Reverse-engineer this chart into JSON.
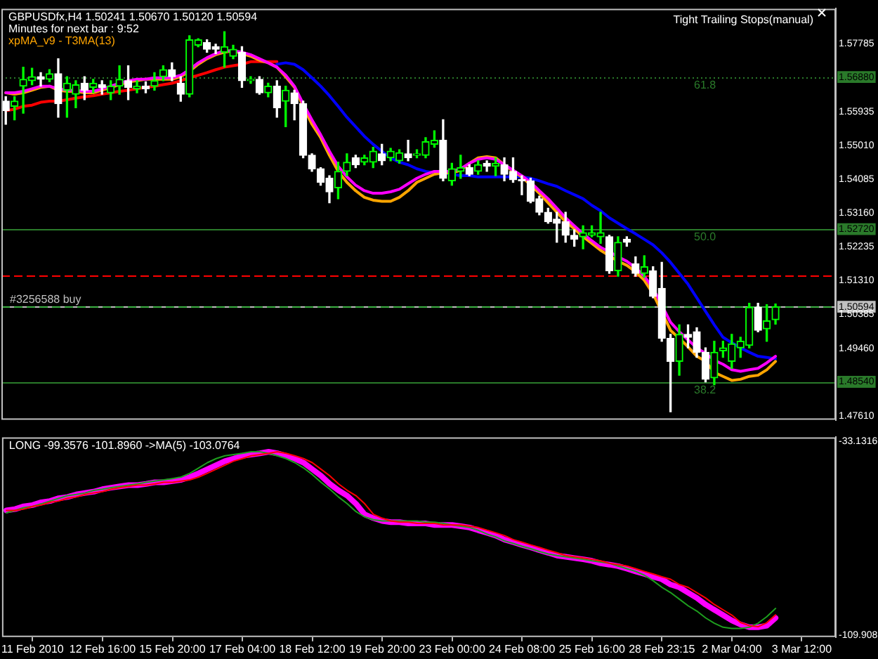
{
  "chart_data": [
    {
      "type": "candlestick",
      "title": "GBPUSDfx,H4 1.50241 1.50670 1.50120 1.50594",
      "annotations": [
        "Minutes for next bar : 9:52",
        "Tight Trailing Stops(manual)",
        {
          "text": "61.8",
          "y": 1.5688
        },
        {
          "text": "50.0",
          "y": 1.5272
        },
        {
          "text": "38.2",
          "y": 1.4854
        }
      ],
      "categories": [
        null,
        null,
        null,
        null,
        null,
        null,
        null,
        null,
        null,
        null,
        null,
        null,
        null,
        null,
        null,
        null,
        null,
        null,
        null,
        null,
        null,
        null,
        null,
        null,
        null,
        null,
        null,
        null,
        null,
        null,
        null,
        null,
        null,
        null,
        null,
        null,
        null,
        null,
        null,
        null,
        null,
        null,
        null,
        null,
        null,
        null,
        null,
        null,
        null,
        null,
        null,
        null,
        null,
        null,
        null,
        null,
        null,
        null,
        null,
        null,
        null,
        null,
        null,
        null,
        null,
        null,
        null,
        null,
        null,
        null,
        null,
        null,
        null,
        null,
        null,
        null,
        null,
        null,
        null,
        null,
        null,
        null,
        null,
        null,
        null,
        null,
        null,
        null,
        null,
        null,
        null,
        null
      ],
      "colors": [
        "#ffffff",
        "#00ff00",
        "#00ff00",
        "#00ff00",
        "#ffffff",
        "#00ff00",
        "#ffffff",
        "#00ff00",
        "#00ff00",
        "#ffffff",
        "#00ff00",
        "#ffffff",
        "#00ff00",
        "#00ff00",
        "#ffffff",
        "#00ff00",
        "#ffffff",
        "#00ff00",
        "#00ff00",
        "#ffffff",
        "#ffffff",
        "#00ff00",
        "#00ff00",
        "#ffffff",
        "#ffffff",
        "#00ff00",
        "#00ff00",
        "#ffffff",
        "#00ff00",
        "#ffffff",
        "#00ff00",
        "#ffffff",
        "#00ff00",
        "#ffffff",
        "#ffffff",
        "#ffffff",
        "#ffffff",
        "#ffffff",
        "#00ff00",
        "#00ff00",
        "#ffffff",
        "#00ff00",
        "#00ff00",
        "#ffffff",
        "#00ff00",
        "#00ff00",
        "#ffffff",
        "#00ff00",
        "#00ff00",
        "#00ff00",
        "#ffffff",
        "#00ff00",
        "#00ff00",
        "#ffffff",
        "#00ff00",
        "#ffffff",
        "#00ff00",
        "#ffffff",
        "#ffffff",
        "#ffffff",
        "#ffffff",
        "#ffffff",
        "#ffffff",
        "#ffffff",
        "#ffffff",
        "#ffffff",
        "#00ff00",
        "#00ff00",
        "#00ff00",
        "#ffffff",
        "#00ff00",
        "#ffffff",
        "#ffffff",
        "#00ff00",
        "#ffffff",
        "#ffffff",
        "#ffffff",
        "#00ff00",
        "#ffffff",
        "#ffffff",
        "#ffffff",
        "#00ff00",
        "#00ff00",
        "#00ff00",
        "#00ff00",
        "#00ff00",
        "#ffffff",
        "#00ff00",
        "#00ff00",
        null,
        null,
        null
      ],
      "ohlc": [
        [
          1.5622,
          1.5634,
          1.5559,
          1.5596
        ],
        [
          1.5608,
          1.5634,
          1.5571,
          1.5622
        ],
        [
          1.5663,
          1.5715,
          1.5589,
          1.5682
        ],
        [
          1.5678,
          1.5712,
          1.5667,
          1.5689
        ],
        [
          1.5689,
          1.57,
          1.5663,
          1.5682
        ],
        [
          1.5682,
          1.5708,
          1.5675,
          1.5697
        ],
        [
          1.5697,
          1.5738,
          1.5578,
          1.5615
        ],
        [
          1.5652,
          1.5689,
          1.5578,
          1.5671
        ],
        [
          1.5641,
          1.5678,
          1.5604,
          1.5667
        ],
        [
          1.5671,
          1.5689,
          1.5626,
          1.5652
        ],
        [
          1.566,
          1.5682,
          1.5645,
          1.5671
        ],
        [
          1.5667,
          1.5678,
          1.5641,
          1.566
        ],
        [
          1.5645,
          1.5678,
          1.5626,
          1.5663
        ],
        [
          1.5663,
          1.5719,
          1.5641,
          1.5682
        ],
        [
          1.5678,
          1.5719,
          1.5626,
          1.566
        ],
        [
          1.5656,
          1.5678,
          1.5645,
          1.5663
        ],
        [
          1.5663,
          1.5675,
          1.5645,
          1.5656
        ],
        [
          1.5663,
          1.57,
          1.5652,
          1.5678
        ],
        [
          1.5689,
          1.5719,
          1.5678,
          1.5708
        ],
        [
          1.5708,
          1.5727,
          1.5678,
          1.5689
        ],
        [
          1.5671,
          1.5689,
          1.5622,
          1.5641
        ],
        [
          1.5641,
          1.5801,
          1.5634,
          1.579
        ],
        [
          1.5775,
          1.5793,
          1.5771,
          1.579
        ],
        [
          1.5782,
          1.579,
          1.5756,
          1.5764
        ],
        [
          1.5771,
          1.5778,
          1.5752,
          1.5764
        ],
        [
          1.5756,
          1.5812,
          1.5715,
          1.5771
        ],
        [
          1.5745,
          1.5775,
          1.5738,
          1.5764
        ],
        [
          1.5756,
          1.5771,
          1.566,
          1.5678
        ],
        [
          1.5678,
          1.5689,
          1.5671,
          1.5682
        ],
        [
          1.5682,
          1.5689,
          1.5641,
          1.5645
        ],
        [
          1.5645,
          1.5671,
          1.5634,
          1.5663
        ],
        [
          1.5663,
          1.5678,
          1.5578,
          1.5604
        ],
        [
          1.5622,
          1.5663,
          1.5552,
          1.5652
        ],
        [
          1.5645,
          1.5652,
          1.5571,
          1.5615
        ],
        [
          1.5615,
          1.5622,
          1.5467,
          1.5474
        ],
        [
          1.5474,
          1.5478,
          1.543,
          1.5437
        ],
        [
          1.5437,
          1.544,
          1.5392,
          1.54
        ],
        [
          1.5411,
          1.5418,
          1.5344,
          1.5374
        ],
        [
          1.5385,
          1.5455,
          1.5355,
          1.543
        ],
        [
          1.543,
          1.5478,
          1.5418,
          1.5455
        ],
        [
          1.5467,
          1.5474,
          1.544,
          1.5448
        ],
        [
          1.5455,
          1.5474,
          1.5448,
          1.5467
        ],
        [
          1.5455,
          1.5496,
          1.544,
          1.5485
        ],
        [
          1.5478,
          1.5504,
          1.5448,
          1.5459
        ],
        [
          1.5467,
          1.5493,
          1.5459,
          1.5485
        ],
        [
          1.5459,
          1.5489,
          1.5452,
          1.5481
        ],
        [
          1.5478,
          1.5515,
          1.5459,
          1.5467
        ],
        [
          1.5474,
          1.5489,
          1.5467,
          1.5478
        ],
        [
          1.5474,
          1.5522,
          1.5467,
          1.5511
        ],
        [
          1.5504,
          1.5541,
          1.5496,
          1.5515
        ],
        [
          1.5515,
          1.5571,
          1.5404,
          1.5411
        ],
        [
          1.5404,
          1.5452,
          1.5392,
          1.5437
        ],
        [
          1.543,
          1.5474,
          1.5411,
          1.544
        ],
        [
          1.544,
          1.5448,
          1.5418,
          1.5422
        ],
        [
          1.543,
          1.5459,
          1.5422,
          1.5448
        ],
        [
          1.5452,
          1.5459,
          1.543,
          1.5444
        ],
        [
          1.5444,
          1.5467,
          1.5418,
          1.5452
        ],
        [
          1.5448,
          1.5467,
          1.5404,
          1.5422
        ],
        [
          1.543,
          1.5467,
          1.54,
          1.5407
        ],
        [
          1.5407,
          1.5418,
          1.5366,
          1.5404
        ],
        [
          1.5404,
          1.5411,
          1.5344,
          1.5348
        ],
        [
          1.5355,
          1.5362,
          1.5311,
          1.5318
        ],
        [
          1.5318,
          1.5329,
          1.5288,
          1.5292
        ],
        [
          1.5299,
          1.5318,
          1.5236,
          1.5288
        ],
        [
          1.5292,
          1.5318,
          1.5236,
          1.5255
        ],
        [
          1.5255,
          1.527,
          1.5225,
          1.5244
        ],
        [
          1.5251,
          1.5281,
          1.5218,
          1.5262
        ],
        [
          1.5255,
          1.5281,
          1.5251,
          1.5262
        ],
        [
          1.5251,
          1.5318,
          1.5233,
          1.5262
        ],
        [
          1.5251,
          1.5255,
          1.5151,
          1.5158
        ],
        [
          1.5158,
          1.5251,
          1.5143,
          1.5236
        ],
        [
          1.5244,
          1.5251,
          1.5225,
          1.5236
        ],
        [
          1.5177,
          1.5196,
          1.5143,
          1.5151
        ],
        [
          1.5151,
          1.5199,
          1.514,
          1.5169
        ],
        [
          1.5158,
          1.5169,
          1.5084,
          1.5088
        ],
        [
          1.511,
          1.5181,
          1.4965,
          1.4973
        ],
        [
          1.4973,
          1.4984,
          1.4772,
          1.491
        ],
        [
          1.491,
          1.501,
          1.4872,
          1.4984
        ],
        [
          1.4984,
          1.501,
          1.4947,
          1.4976
        ],
        [
          1.4991,
          1.5002,
          1.4921,
          1.4935
        ],
        [
          1.4935,
          1.4947,
          1.4854,
          1.4861
        ],
        [
          1.4865,
          1.4965,
          1.4846,
          1.4935
        ],
        [
          1.4939,
          1.4965,
          1.4921,
          1.4947
        ],
        [
          1.491,
          1.4984,
          1.4891,
          1.4958
        ],
        [
          1.4947,
          1.4976,
          1.4921,
          1.4965
        ],
        [
          1.4954,
          1.5069,
          1.4947,
          1.5058
        ],
        [
          1.5058,
          1.5069,
          1.4991,
          1.4995
        ],
        [
          1.4999,
          1.5065,
          1.4965,
          1.5021
        ],
        [
          1.50241,
          1.5067,
          1.5012,
          1.50594
        ],
        null,
        null,
        null
      ],
      "series": [
        {
          "type": "line",
          "color": "#ff0000",
          "values": [
            1.5596,
            1.56,
            1.5608,
            1.5611,
            1.5619,
            1.5622,
            1.5622,
            1.5626,
            1.563,
            1.5634,
            1.5637,
            1.5641,
            1.5645,
            1.5649,
            1.5652,
            1.5656,
            1.566,
            1.5663,
            1.5667,
            1.5671,
            1.5678,
            1.5686,
            1.5693,
            1.57,
            1.5708,
            1.5715,
            1.5719,
            1.5723,
            1.573,
            1.573,
            1.573,
            1.573,
            null,
            null,
            null,
            null,
            null,
            null,
            null,
            null,
            null,
            null,
            null,
            null,
            null,
            null,
            null,
            null,
            null,
            null,
            null,
            null,
            null,
            null,
            null,
            null,
            null,
            null,
            null,
            null,
            null,
            null,
            null,
            null,
            null,
            null,
            null,
            null,
            null,
            null,
            null,
            null,
            null,
            null,
            null,
            null,
            null,
            null,
            null,
            null,
            null,
            null,
            null,
            null,
            null,
            null,
            null,
            null,
            null,
            null,
            null,
            null
          ]
        },
        {
          "type": "line",
          "color": "#0000ff",
          "values": [
            null,
            null,
            null,
            null,
            null,
            null,
            null,
            null,
            null,
            null,
            null,
            null,
            null,
            null,
            null,
            null,
            null,
            null,
            null,
            null,
            null,
            null,
            null,
            null,
            null,
            null,
            null,
            null,
            null,
            null,
            null,
            1.5723,
            1.5727,
            1.5723,
            1.5708,
            1.5686,
            1.5663,
            1.5637,
            1.5608,
            1.5578,
            1.5552,
            1.5526,
            1.5504,
            1.5485,
            1.5467,
            1.5455,
            1.5448,
            1.5437,
            1.543,
            1.5426,
            1.5426,
            1.5422,
            1.5418,
            1.5418,
            1.5415,
            1.5415,
            1.5415,
            1.5415,
            1.5415,
            1.5415,
            1.5411,
            1.5404,
            1.5396,
            1.5389,
            1.5377,
            1.5366,
            1.5355,
            1.5337,
            1.5322,
            1.5303,
            1.5288,
            1.5273,
            1.5259,
            1.5244,
            1.5229,
            1.5207,
            1.5181,
            1.5151,
            1.5121,
            1.5084,
            1.5047,
            1.501,
            1.4976,
            1.4961,
            1.4947,
            1.4935,
            1.4924,
            1.4921,
            1.4917,
            null,
            null,
            null
          ]
        },
        {
          "type": "line",
          "name": "xpMA_v9 - T3MA(13)",
          "color": "#ffa500",
          "values": [
            1.5645,
            1.5641,
            1.5645,
            1.5652,
            1.566,
            1.5663,
            1.5652,
            1.5649,
            1.5649,
            1.5645,
            1.5645,
            1.5652,
            1.566,
            1.5667,
            1.5675,
            1.5678,
            1.5682,
            1.5682,
            1.5682,
            1.5682,
            1.5689,
            1.5704,
            1.5723,
            1.5738,
            1.5749,
            1.5756,
            1.576,
            1.5752,
            1.5745,
            1.5734,
            1.5727,
            1.5715,
            1.5689,
            1.566,
            1.5608,
            1.5559,
            1.5522,
            1.5474,
            1.543,
            1.54,
            1.5377,
            1.5359,
            1.5351,
            1.5348,
            1.5348,
            1.5359,
            1.5377,
            1.54,
            1.5411,
            1.5422,
            1.5426,
            1.5426,
            1.5433,
            1.5452,
            1.5467,
            1.547,
            1.5467,
            1.5448,
            1.543,
            1.5415,
            1.5392,
            1.537,
            1.5344,
            1.5318,
            1.5292,
            1.5273,
            1.5251,
            1.5233,
            1.5214,
            1.5199,
            1.5184,
            1.5173,
            1.5155,
            1.5132,
            1.5095,
            null,
            1.4995,
            1.4973,
            1.495,
            1.4924,
            1.491,
            1.488,
            1.4869,
            1.4858,
            1.4861,
            1.4869,
            1.4872,
            1.4887,
            1.491,
            null,
            null,
            null
          ]
        },
        {
          "type": "line",
          "color": "#ff00ff",
          "values": [
            1.5645,
            1.5645,
            1.5649,
            1.5656,
            1.5663,
            1.5663,
            1.5656,
            1.5652,
            1.5652,
            1.5649,
            1.5649,
            1.5656,
            1.5663,
            1.5671,
            1.5678,
            1.5682,
            1.5682,
            1.5686,
            1.5686,
            1.5686,
            1.5693,
            1.5708,
            1.5727,
            1.5741,
            1.5752,
            1.576,
            1.576,
            1.5756,
            1.5749,
            1.5738,
            1.5727,
            1.5715,
            1.5693,
            1.5663,
            1.5615,
            1.5571,
            1.553,
            1.5485,
            1.5444,
            1.5415,
            1.5392,
            1.5377,
            1.537,
            1.537,
            1.5374,
            1.5381,
            1.5396,
            1.5411,
            1.5422,
            1.543,
            1.543,
            1.543,
            1.5437,
            1.5452,
            1.5463,
            1.5467,
            1.5463,
            1.5448,
            1.5433,
            1.5418,
            1.54,
            1.5377,
            1.5355,
            1.5329,
            1.5303,
            1.5281,
            1.5259,
            1.524,
            1.5222,
            1.521,
            1.5196,
            1.5184,
            1.5166,
            1.5143,
            1.511,
            null,
            1.5017,
            1.4991,
            1.4969,
            1.4947,
            1.4932,
            1.4913,
            1.4902,
            1.4887,
            1.4883,
            1.4887,
            1.4891,
            1.4906,
            1.4924,
            null,
            null,
            null
          ]
        }
      ],
      "ylim": [
        1.475,
        1.5875
      ],
      "yticks": [
        1.57785,
        {
          "value": 1.5688,
          "label": "1.56880"
        },
        1.55935,
        {
          "value": 1.5501,
          "label": "1.55010"
        },
        1.54085,
        {
          "value": 1.5316,
          "label": "1.53160"
        },
        {
          "value": 1.5272,
          "label": "1.52720"
        },
        1.52235,
        {
          "value": 1.5131,
          "label": "1.51310"
        },
        1.50594,
        1.50385,
        {
          "value": 1.4946,
          "label": "1.49460"
        },
        {
          "value": 1.4854,
          "label": "1.48540"
        },
        {
          "value": 1.4761,
          "label": "1.47610"
        }
      ],
      "ref_lines": [
        {
          "axis": "y",
          "value": 1.5688,
          "color": "#2a7a2a",
          "line_style": "dotted"
        },
        {
          "axis": "y",
          "value": 1.5272,
          "color": "#2a7a2a"
        },
        {
          "axis": "y",
          "value": 1.4854,
          "color": "#2a7a2a"
        },
        {
          "axis": "y",
          "value": 1.5144,
          "color": "#ff0000",
          "line_style": "dashed"
        },
        {
          "axis": "y",
          "value": 1.50594,
          "color": "#c0c0c0"
        },
        {
          "axis": "y",
          "value": 1.5059,
          "label": "#3256588 buy",
          "color": "#3cb043",
          "line_style": "dashed"
        }
      ],
      "legend": "top left",
      "tick_labels": "y"
    },
    {
      "type": "line",
      "title": "LONG -99.3576 -101.8960 ->MA(5) -103.0764",
      "categories": [
        null,
        null,
        null,
        "11 Feb 2010",
        null,
        null,
        null,
        null,
        null,
        null,
        null,
        "12 Feb 16:00",
        null,
        null,
        null,
        null,
        null,
        null,
        null,
        "15 Feb 20:00",
        null,
        null,
        null,
        null,
        null,
        null,
        null,
        "17 Feb 04:00",
        null,
        null,
        null,
        null,
        null,
        null,
        null,
        "18 Feb 12:00",
        null,
        null,
        null,
        null,
        null,
        null,
        null,
        "19 Feb 20:00",
        null,
        null,
        null,
        null,
        null,
        null,
        null,
        "23 Feb 00:00",
        null,
        null,
        null,
        null,
        null,
        null,
        null,
        "24 Feb 08:00",
        null,
        null,
        null,
        null,
        null,
        null,
        null,
        "25 Feb 16:00",
        null,
        null,
        null,
        null,
        null,
        null,
        null,
        "28 Feb 23:15",
        null,
        null,
        null,
        null,
        null,
        null,
        null,
        "2 Mar 04:00",
        null,
        null,
        null,
        null,
        null,
        null,
        null,
        "3 Mar 12:00"
      ],
      "series": [
        {
          "color": "#1e9e1e",
          "values": [
            -61.5,
            -60.5,
            -59.4,
            -58.9,
            -57.9,
            -56.8,
            -55.7,
            -54.7,
            -54.2,
            -53.6,
            -52.6,
            -52.1,
            -51.5,
            -51.0,
            -50.5,
            -50.0,
            -49.4,
            -48.9,
            -48.4,
            -47.9,
            -47.3,
            -45.8,
            -43.7,
            -41.6,
            -40.0,
            -38.9,
            -38.4,
            -37.9,
            -37.3,
            -37.3,
            -37.9,
            -38.9,
            -40.0,
            -41.6,
            -43.7,
            -46.3,
            -49.4,
            -52.1,
            -55.2,
            -57.9,
            -61.0,
            -63.1,
            -64.2,
            -64.7,
            -64.7,
            -64.7,
            -64.7,
            -64.7,
            -65.2,
            -65.2,
            -65.7,
            -66.3,
            -66.8,
            -67.3,
            -68.4,
            -69.9,
            -71.0,
            -72.6,
            -73.6,
            -74.7,
            -75.7,
            -76.8,
            -77.8,
            -78.4,
            -78.9,
            -79.4,
            -79.9,
            -80.5,
            -81.0,
            -81.5,
            -82.6,
            -83.6,
            -84.7,
            -86.2,
            -88.4,
            -91.0,
            -93.1,
            -95.7,
            -98.3,
            -100.4,
            -103.1,
            -105.2,
            -106.8,
            -107.3,
            -107.3,
            -106.8,
            -105.2,
            -102.6,
            -99.3576,
            null,
            null,
            null
          ]
        },
        {
          "color": "#ff0000",
          "values": [
            -60.5,
            -60.5,
            -60.0,
            -58.9,
            -58.4,
            -57.3,
            -56.8,
            -55.7,
            -55.2,
            -54.2,
            -53.6,
            -53.1,
            -52.1,
            -51.5,
            -51.0,
            -50.5,
            -50.5,
            -50.0,
            -49.4,
            -49.4,
            -48.9,
            -48.4,
            -47.3,
            -45.8,
            -44.2,
            -42.6,
            -41.0,
            -40.0,
            -38.9,
            -38.4,
            -37.9,
            -37.3,
            -37.9,
            -38.9,
            -40.0,
            -41.6,
            -44.2,
            -46.8,
            -50.0,
            -52.6,
            -54.7,
            -57.9,
            -62.1,
            -63.6,
            -64.7,
            -65.2,
            -65.2,
            -65.7,
            -65.7,
            -65.7,
            -66.3,
            -66.3,
            -66.3,
            -66.8,
            -67.3,
            -68.4,
            -69.4,
            -70.5,
            -72.1,
            -73.1,
            -74.2,
            -75.2,
            -76.3,
            -77.3,
            -78.4,
            -78.9,
            -79.4,
            -79.9,
            -80.5,
            -81.5,
            -82.0,
            -82.6,
            -83.6,
            -84.7,
            -85.7,
            -86.8,
            -87.8,
            -89.9,
            -91.0,
            -93.1,
            -95.2,
            -97.8,
            -99.9,
            -102.0,
            -104.9,
            -106.2,
            -106.6,
            -105.0,
            -101.896,
            null,
            null,
            null
          ]
        },
        {
          "color": "#ff00ff",
          "values": [
            -60.5,
            -60.0,
            -58.9,
            -58.4,
            -57.3,
            -56.8,
            -55.7,
            -55.2,
            -54.2,
            -53.6,
            -53.1,
            -52.1,
            -51.5,
            -51.0,
            -50.5,
            -50.5,
            -50.0,
            -49.4,
            -49.4,
            -48.9,
            -48.4,
            -47.3,
            -45.8,
            -44.2,
            -42.6,
            -41.0,
            -40.0,
            -38.9,
            -38.4,
            -37.9,
            -37.3,
            -37.9,
            -38.9,
            -40.0,
            -41.6,
            -44.2,
            -46.8,
            -50.0,
            -52.6,
            -54.7,
            -57.9,
            -62.1,
            -63.6,
            -64.7,
            -65.2,
            -65.2,
            -65.7,
            -65.7,
            -65.7,
            -66.3,
            -66.3,
            -66.3,
            -66.8,
            -67.3,
            -68.4,
            -69.4,
            -70.5,
            -72.1,
            -73.1,
            -74.2,
            -75.2,
            -76.3,
            -77.3,
            -78.4,
            -78.9,
            -79.4,
            -79.9,
            -80.5,
            -81.5,
            -82.0,
            -82.6,
            -83.6,
            -84.7,
            -85.7,
            -86.8,
            -87.8,
            -89.9,
            -91.0,
            -93.1,
            -95.2,
            -97.8,
            -99.9,
            -102.0,
            -104.1,
            -105.7,
            -106.8,
            -106.8,
            -106.2,
            -103.0764,
            null,
            null,
            null
          ]
        }
      ],
      "ylim": [
        -110.7,
        -31.55
      ],
      "yticks": [
        -33.1316,
        -109.908
      ]
    }
  ]
}
